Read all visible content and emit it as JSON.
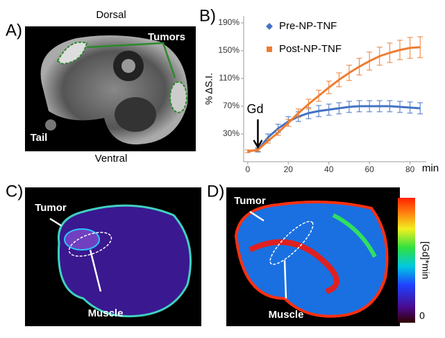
{
  "panels": {
    "a": {
      "label": "A)",
      "top": "Dorsal",
      "bottom": "Ventral",
      "tumors": "Tumors",
      "tail": "Tail"
    },
    "c": {
      "label": "C)",
      "tumor": "Tumor",
      "muscle": "Muscle"
    },
    "d": {
      "label": "D)",
      "tumor": "Tumor",
      "muscle": "Muscle",
      "colorbar_label": "[Gd]*min",
      "colorbar_min": "0"
    }
  },
  "chart_data": {
    "type": "line",
    "label": "B)",
    "ylabel": "% ΔS.I.",
    "xlabel": "min",
    "annotation": "Gd",
    "x": [
      0,
      5,
      10,
      15,
      20,
      25,
      30,
      35,
      40,
      45,
      50,
      55,
      60,
      65,
      70,
      75,
      80,
      85
    ],
    "series": [
      {
        "name": "Pre-NP-TNF",
        "color": "#4472c4",
        "marker": "diamond",
        "values": [
          5,
          7,
          25,
          38,
          48,
          55,
          60,
          63,
          65,
          67,
          69,
          70,
          70,
          70,
          70,
          69,
          68,
          67
        ],
        "errors": [
          2,
          3,
          5,
          6,
          7,
          7,
          8,
          8,
          8,
          8,
          8,
          8,
          8,
          8,
          8,
          8,
          8,
          8
        ]
      },
      {
        "name": "Post-NP-TNF",
        "color": "#ed7d31",
        "marker": "square",
        "values": [
          5,
          7,
          20,
          32,
          46,
          60,
          73,
          85,
          97,
          108,
          118,
          127,
          135,
          142,
          147,
          151,
          154,
          155
        ],
        "errors": [
          2,
          2,
          3,
          4,
          5,
          6,
          7,
          8,
          9,
          10,
          11,
          12,
          13,
          13,
          14,
          14,
          15,
          15
        ]
      }
    ],
    "xlim": [
      -2,
      88
    ],
    "xticks": [
      0,
      20,
      40,
      60,
      80
    ],
    "ylim": [
      -10,
      200
    ],
    "yticks": [
      {
        "value": 30,
        "label": "30%"
      },
      {
        "value": 70,
        "label": "70%"
      },
      {
        "value": 110,
        "label": "110%"
      },
      {
        "value": 150,
        "label": "150%"
      },
      {
        "value": 190,
        "label": "190%"
      }
    ],
    "legend": "top-left"
  }
}
